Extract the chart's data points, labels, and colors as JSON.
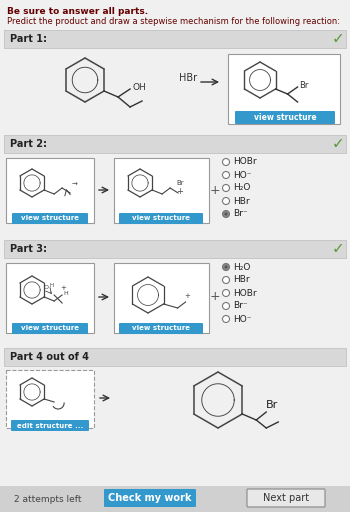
{
  "bg_color": "#f0f0f0",
  "white": "#ffffff",
  "blue_btn": "#3399cc",
  "section_bg": "#d8d8d8",
  "text_color": "#333333",
  "dark_red": "#660000",
  "green_check": "#5a9a3a",
  "title_line1": "Be sure to answer all parts.",
  "title_line2": "Predict the product and draw a stepwise mechanism for the following reaction:",
  "parts": [
    "Part 1:",
    "Part 2:",
    "Part 3:",
    "Part 4 out of 4"
  ],
  "part2_options": [
    "HOBr",
    "HO⁻",
    "H₂O",
    "HBr",
    "Br⁻"
  ],
  "part2_selected": 4,
  "part3_options": [
    "H₂O",
    "HBr",
    "HOBr",
    "Br⁻",
    "HO⁻"
  ],
  "part3_selected": 0,
  "bottom_left": "2 attempts left",
  "bottom_mid": "Check my work",
  "bottom_right": "Next part",
  "part1_reagent": "HBr",
  "part1_btn": "view structure",
  "edit_btn": "edit structure ...",
  "view_btn": "view structure",
  "figw": 3.5,
  "figh": 5.12,
  "dpi": 100
}
